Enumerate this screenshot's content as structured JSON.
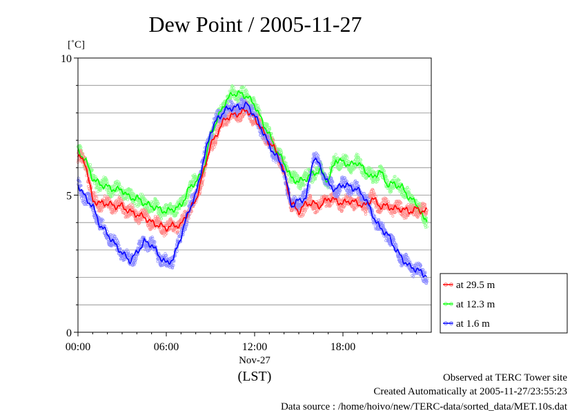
{
  "chart_data": {
    "type": "line",
    "title": "Dew Point / 2005-11-27",
    "ylabel": "[˚C]",
    "xlabel": "(LST)",
    "date_label": "Nov-27",
    "ylim": [
      0,
      10
    ],
    "xlim": [
      0,
      24
    ],
    "y_ticks": [
      0,
      5,
      10
    ],
    "y_tick_labels": [
      "0",
      "5",
      "10"
    ],
    "x_ticks": [
      0,
      6,
      12,
      18
    ],
    "x_tick_labels": [
      "00:00",
      "06:00",
      "12:00",
      "18:00"
    ],
    "grid": true,
    "legend_position": "right",
    "series": [
      {
        "name": "at 29.5 m",
        "color": "#ff0000",
        "x": [
          0,
          0.5,
          1,
          1.5,
          2,
          2.5,
          3,
          3.5,
          4,
          4.5,
          5,
          5.5,
          6,
          6.5,
          7,
          7.5,
          8,
          8.5,
          9,
          9.5,
          10,
          10.5,
          11,
          11.5,
          12,
          12.5,
          13,
          13.5,
          14,
          14.5,
          15,
          15.5,
          16,
          16.5,
          17,
          17.5,
          18,
          18.5,
          19,
          19.5,
          20,
          20.5,
          21,
          21.5,
          22,
          22.5,
          23,
          23.5
        ],
        "y": [
          6.4,
          6.2,
          4.8,
          4.7,
          4.7,
          4.6,
          4.6,
          4.4,
          4.3,
          4.2,
          4.0,
          3.9,
          3.8,
          3.9,
          3.9,
          4.4,
          4.8,
          5.8,
          6.8,
          7.3,
          7.8,
          7.9,
          8.0,
          8.1,
          7.8,
          7.4,
          6.9,
          6.6,
          5.8,
          4.7,
          4.4,
          4.7,
          4.7,
          4.6,
          4.9,
          4.8,
          4.7,
          4.8,
          4.7,
          4.6,
          4.9,
          4.6,
          4.6,
          4.5,
          4.5,
          4.4,
          4.5,
          4.4
        ]
      },
      {
        "name": "at 12.3 m",
        "color": "#00ff00",
        "x": [
          0,
          0.5,
          1,
          1.5,
          2,
          2.5,
          3,
          3.5,
          4,
          4.5,
          5,
          5.5,
          6,
          6.5,
          7,
          7.5,
          8,
          8.5,
          9,
          9.5,
          10,
          10.5,
          11,
          11.5,
          12,
          12.5,
          13,
          13.5,
          14,
          14.5,
          15,
          15.5,
          16,
          16.5,
          17,
          17.5,
          18,
          18.5,
          19,
          19.5,
          20,
          20.5,
          21,
          21.5,
          22,
          22.5,
          23,
          23.5
        ],
        "y": [
          6.6,
          6.3,
          5.6,
          5.4,
          5.3,
          5.2,
          5.2,
          4.9,
          4.9,
          4.7,
          4.6,
          4.5,
          4.4,
          4.5,
          4.6,
          5.2,
          5.5,
          5.8,
          7.2,
          7.8,
          8.4,
          8.7,
          8.7,
          8.6,
          8.3,
          7.7,
          7.2,
          6.6,
          6.2,
          5.6,
          5.5,
          5.6,
          5.8,
          5.9,
          5.5,
          6.3,
          6.2,
          6.1,
          6.2,
          5.9,
          5.6,
          5.9,
          5.4,
          5.4,
          5.3,
          4.9,
          4.7,
          4.1
        ]
      },
      {
        "name": "at 1.6 m",
        "color": "#0000ff",
        "x": [
          0,
          0.5,
          1,
          1.5,
          2,
          2.5,
          3,
          3.5,
          4,
          4.5,
          5,
          5.5,
          6,
          6.5,
          7,
          7.5,
          8,
          8.5,
          9,
          9.5,
          10,
          10.5,
          11,
          11.5,
          12,
          12.5,
          13,
          13.5,
          14,
          14.5,
          15,
          15.5,
          16,
          16.5,
          17,
          17.5,
          18,
          18.5,
          19,
          19.5,
          20,
          20.5,
          21,
          21.5,
          22,
          22.5,
          23,
          23.5
        ],
        "y": [
          5.4,
          4.9,
          4.6,
          3.9,
          3.6,
          3.2,
          2.9,
          2.6,
          2.9,
          3.3,
          3.2,
          2.8,
          2.5,
          2.7,
          3.5,
          4.4,
          5.0,
          6.2,
          7.3,
          7.8,
          8.1,
          8.2,
          8.2,
          8.3,
          7.9,
          7.4,
          6.8,
          6.4,
          5.9,
          4.6,
          4.8,
          4.9,
          6.4,
          6.0,
          5.4,
          5.2,
          5.4,
          5.3,
          5.2,
          4.9,
          4.3,
          3.8,
          3.6,
          3.1,
          2.7,
          2.4,
          2.3,
          2.1
        ]
      }
    ]
  },
  "footer": {
    "line1": "Observed at TERC Tower site",
    "line2": "Created Automatically at 2005-11-27/23:55:23",
    "line3": "Data source : /home/hoivo/new/TERC-data/sorted_data/MET.10s.dat"
  }
}
